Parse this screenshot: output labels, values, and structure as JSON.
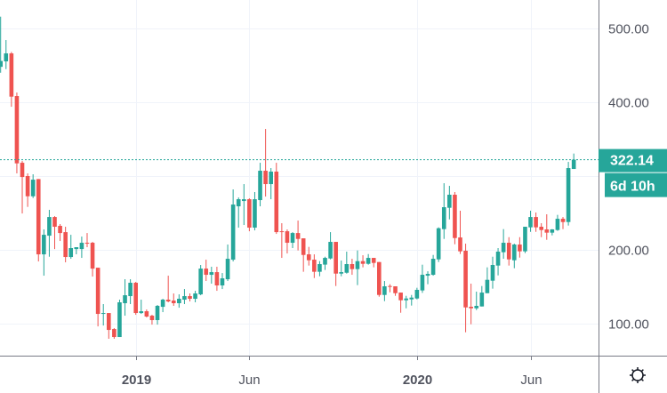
{
  "chart_data": {
    "type": "candlestick",
    "title": "",
    "xlabel": "",
    "ylabel": "",
    "ylim": [
      58,
      538
    ],
    "grid": true,
    "colors": {
      "up": "#26a69a",
      "down": "#ef5350",
      "grid": "#f0f3fa",
      "axis": "#787b86"
    },
    "y_ticks": [
      {
        "value": 500,
        "label": "500.00"
      },
      {
        "value": 400,
        "label": "400.00"
      },
      {
        "value": 300,
        "label": "300.00"
      },
      {
        "value": 200,
        "label": "200.00"
      },
      {
        "value": 100,
        "label": "100.00"
      }
    ],
    "x_ticks": [
      {
        "index": 25,
        "label": "2019"
      },
      {
        "index": 46,
        "label": "Jun"
      },
      {
        "index": 77,
        "label": "2020"
      },
      {
        "index": 98,
        "label": "Jun"
      }
    ],
    "last_price": {
      "value": 322.14,
      "label": "322.14",
      "countdown": "6d 10h"
    },
    "settings_icon": "gear-icon",
    "ohlc": [
      [
        448,
        516,
        440,
        456
      ],
      [
        455.4,
        484.3,
        444.9,
        466.2
      ],
      [
        466.2,
        468.2,
        393.9,
        407.6
      ],
      [
        408.4,
        413.2,
        303.6,
        317.2
      ],
      [
        318,
        320.4,
        249.3,
        298.7
      ],
      [
        300,
        303.6,
        258.2,
        272.6
      ],
      [
        272.6,
        302.4,
        270.2,
        295.1
      ],
      [
        295.9,
        296,
        184.3,
        193.9
      ],
      [
        193.9,
        227.7,
        165,
        220.4
      ],
      [
        219.2,
        254.2,
        190.7,
        244.5
      ],
      [
        244.5,
        245.7,
        201.1,
        231.3
      ],
      [
        232.5,
        234.9,
        212,
        222.8
      ],
      [
        224,
        231.3,
        183.1,
        190.3
      ],
      [
        190.3,
        220.4,
        187.9,
        202.4
      ],
      [
        201.1,
        203.6,
        194,
        203.6
      ],
      [
        201.1,
        218,
        189.1,
        209.6
      ],
      [
        209.6,
        222.8,
        203.6,
        208.4
      ],
      [
        209.6,
        210.8,
        163.8,
        174.6
      ],
      [
        175.8,
        175.8,
        96.3,
        113.2
      ],
      [
        113.2,
        126.5,
        97.5,
        114.4
      ],
      [
        114.4,
        114.4,
        79.5,
        91.5
      ],
      [
        92.7,
        93.9,
        79.5,
        81.9
      ],
      [
        81.9,
        132.5,
        81.9,
        128.9
      ],
      [
        127.7,
        160.2,
        110.8,
        138.5
      ],
      [
        137.3,
        160.2,
        126.5,
        155.4
      ],
      [
        155.4,
        156.6,
        112,
        114.4
      ],
      [
        114.4,
        132.5,
        113.2,
        116.8
      ],
      [
        116.8,
        119.2,
        108.4,
        109.6
      ],
      [
        110.8,
        112,
        98.7,
        104.8
      ],
      [
        104.8,
        125.3,
        98.7,
        124.1
      ],
      [
        122.8,
        133.7,
        115.6,
        132.5
      ],
      [
        132.5,
        165,
        128.9,
        130.1
      ],
      [
        131.3,
        140.9,
        124.1,
        127.7
      ],
      [
        127.7,
        139.7,
        121.6,
        133.7
      ],
      [
        132.5,
        146.9,
        126.5,
        137.3
      ],
      [
        137.3,
        140.9,
        130.1,
        133.7
      ],
      [
        133.7,
        144.5,
        128.9,
        140.9
      ],
      [
        139.7,
        179.5,
        138.5,
        174.6
      ],
      [
        174.6,
        186.7,
        157.8,
        166.2
      ],
      [
        166.2,
        177.1,
        154.2,
        169.8
      ],
      [
        169.8,
        177.1,
        144.5,
        151.8
      ],
      [
        151.8,
        168.6,
        146.9,
        161.4
      ],
      [
        160.2,
        207.2,
        157.8,
        187.9
      ],
      [
        186.7,
        281.9,
        184.3,
        261.4
      ],
      [
        259,
        271,
        230.1,
        268.6
      ],
      [
        266.2,
        289.1,
        233.7,
        268.6
      ],
      [
        268.6,
        269.8,
        225.2,
        230.1
      ],
      [
        230.1,
        278.3,
        226.4,
        268.6
      ],
      [
        267.4,
        318,
        259,
        307.2
      ],
      [
        307.2,
        363.8,
        272.2,
        289.1
      ],
      [
        289.1,
        310.8,
        268.6,
        306
      ],
      [
        306,
        318,
        221.6,
        224
      ],
      [
        225.2,
        236.1,
        189.1,
        224
      ],
      [
        225.2,
        227.7,
        195.1,
        209.6
      ],
      [
        209.6,
        224,
        202.4,
        222.8
      ],
      [
        222.8,
        239.7,
        199.2,
        214.8
      ],
      [
        215.6,
        215.6,
        170.3,
        193.1
      ],
      [
        193.9,
        204,
        178.7,
        185.9
      ],
      [
        186.7,
        193.9,
        161.8,
        170.3
      ],
      [
        170.3,
        184.7,
        164.2,
        180.7
      ],
      [
        180,
        190.7,
        172.7,
        189.1
      ],
      [
        188.3,
        224,
        187.1,
        210.8
      ],
      [
        210.8,
        210.8,
        151,
        167.8
      ],
      [
        167.8,
        185.5,
        164.2,
        169.8
      ],
      [
        169,
        197.6,
        167.8,
        180.7
      ],
      [
        180.7,
        187.9,
        166.2,
        173.9
      ],
      [
        173.9,
        199.2,
        152.2,
        184.7
      ],
      [
        184.7,
        192.7,
        176.3,
        181.1
      ],
      [
        181.1,
        194.3,
        179.9,
        189.1
      ],
      [
        189.1,
        189.1,
        176.3,
        182.3
      ],
      [
        183.5,
        183.5,
        136.5,
        138.9
      ],
      [
        138.9,
        157.8,
        130.5,
        150.6
      ],
      [
        151,
        153.4,
        142.5,
        149.8
      ],
      [
        150.6,
        150.6,
        137.7,
        141.3
      ],
      [
        142.1,
        142.1,
        114.8,
        131.7
      ],
      [
        131.7,
        137.7,
        120.8,
        134.1
      ],
      [
        132.9,
        138.9,
        124.5,
        135.3
      ],
      [
        134.1,
        148.6,
        132.9,
        145.8
      ],
      [
        145,
        179.9,
        141.7,
        166.2
      ],
      [
        165,
        171,
        153.4,
        167.4
      ],
      [
        166.2,
        193.1,
        165,
        187.9
      ],
      [
        187.1,
        230.5,
        183.5,
        229.3
      ],
      [
        228.1,
        290.3,
        214.8,
        257.8
      ],
      [
        257,
        286.7,
        241.3,
        274.7
      ],
      [
        274.7,
        278.3,
        207.6,
        216
      ],
      [
        216.8,
        253,
        194.4,
        198
      ],
      [
        198.8,
        208.4,
        88.3,
        122
      ],
      [
        122.9,
        154.2,
        99.2,
        120.8
      ],
      [
        120.8,
        143.4,
        118.4,
        124.1
      ],
      [
        123.3,
        151,
        123.3,
        142.1
      ],
      [
        141.3,
        176.3,
        141.3,
        159.4
      ],
      [
        158.2,
        190.7,
        147.4,
        179.5
      ],
      [
        178.7,
        202.4,
        165.4,
        197.6
      ],
      [
        196.8,
        228.1,
        187.9,
        209.6
      ],
      [
        209.6,
        217.2,
        178.7,
        187.1
      ],
      [
        185.9,
        208.4,
        175.1,
        207.2
      ],
      [
        207.2,
        217.2,
        189.5,
        198
      ],
      [
        198,
        231.3,
        195.6,
        231.3
      ],
      [
        230.5,
        253,
        224.4,
        244.5
      ],
      [
        244.5,
        250.6,
        224.4,
        230.5
      ],
      [
        231.3,
        236.1,
        217.2,
        226.9
      ],
      [
        227.7,
        248.2,
        213.6,
        223.3
      ],
      [
        223.3,
        228.1,
        219.6,
        227.7
      ],
      [
        226.9,
        247.4,
        225.7,
        242.1
      ],
      [
        242.1,
        244.5,
        228.1,
        237.7
      ],
      [
        237.7,
        319.2,
        232.9,
        310.8
      ],
      [
        309.6,
        330.5,
        309.6,
        322.14
      ]
    ]
  }
}
